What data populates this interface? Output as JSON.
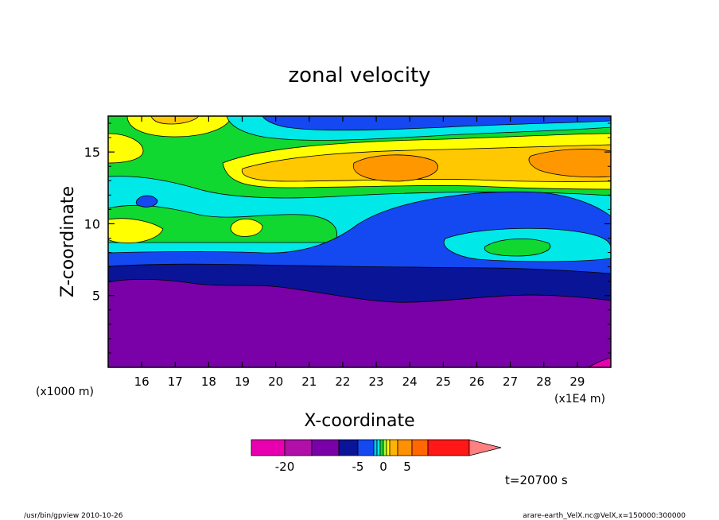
{
  "chart_data": {
    "type": "contour",
    "title": "zonal velocity",
    "xlabel": "X-coordinate",
    "ylabel": "Z-coordinate",
    "x_tick_labels": [
      "16",
      "17",
      "18",
      "19",
      "20",
      "21",
      "22",
      "23",
      "24",
      "25",
      "26",
      "27",
      "28",
      "29"
    ],
    "x_ticks": [
      16,
      17,
      18,
      19,
      20,
      21,
      22,
      23,
      24,
      25,
      26,
      27,
      28,
      29
    ],
    "xlim": [
      15,
      30
    ],
    "x_unit_label": "(x1E4 m)",
    "y_tick_labels": [
      "5",
      "10",
      "15"
    ],
    "y_ticks": [
      5,
      10,
      15
    ],
    "ylim": [
      0,
      17.5
    ],
    "y_unit_label": "(x1000 m)",
    "colorbar": {
      "colors": [
        "#e800b0",
        "#b010a8",
        "#7a00a8",
        "#0a1496",
        "#1448f0",
        "#00c8ff",
        "#00e8e8",
        "#10d830",
        "#a8ff30",
        "#ffff00",
        "#ffb400",
        "#ff9000",
        "#ff6800",
        "#ff1818",
        "#ff8080"
      ],
      "tick_labels": [
        "-20",
        "-5",
        "0",
        "5"
      ],
      "tick_values": [
        -20,
        -5,
        0,
        5
      ]
    },
    "time_label": "t=20700 s",
    "footer_left": "/usr/bin/gpview  2010-10-26",
    "footer_right": "arare-earth_VelX.nc@VelX,x=150000:300000"
  }
}
